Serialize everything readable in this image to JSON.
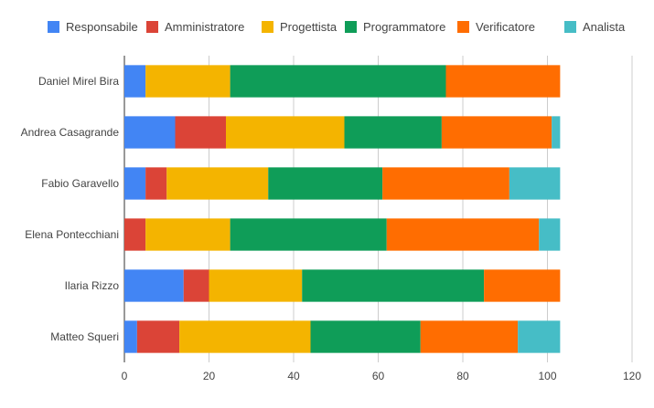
{
  "chart_data": {
    "type": "bar",
    "orientation": "horizontal",
    "stacked": true,
    "categories": [
      "Daniel Mirel Bira",
      "Andrea Casagrande",
      "Fabio Garavello",
      "Elena Pontecchiani",
      "Ilaria Rizzo",
      "Matteo Squeri"
    ],
    "series": [
      {
        "name": "Responsabile",
        "color": "#4285f4",
        "values": [
          5,
          12,
          5,
          0,
          14,
          3
        ]
      },
      {
        "name": "Amministratore",
        "color": "#db4437",
        "values": [
          0,
          12,
          5,
          5,
          6,
          10
        ]
      },
      {
        "name": "Progettista",
        "color": "#f4b400",
        "values": [
          20,
          28,
          24,
          20,
          22,
          31
        ]
      },
      {
        "name": "Programmatore",
        "color": "#0f9d58",
        "values": [
          51,
          23,
          27,
          37,
          43,
          26
        ]
      },
      {
        "name": "Verificatore",
        "color": "#ff6d01",
        "values": [
          27,
          26,
          30,
          36,
          18,
          23
        ]
      },
      {
        "name": "Analista",
        "color": "#46bdc6",
        "values": [
          0,
          2,
          12,
          5,
          0,
          10
        ]
      }
    ],
    "xlim": [
      0,
      120
    ],
    "xticks": [
      0,
      20,
      40,
      60,
      80,
      100,
      120
    ],
    "grid": "vertical",
    "legend": "top"
  }
}
